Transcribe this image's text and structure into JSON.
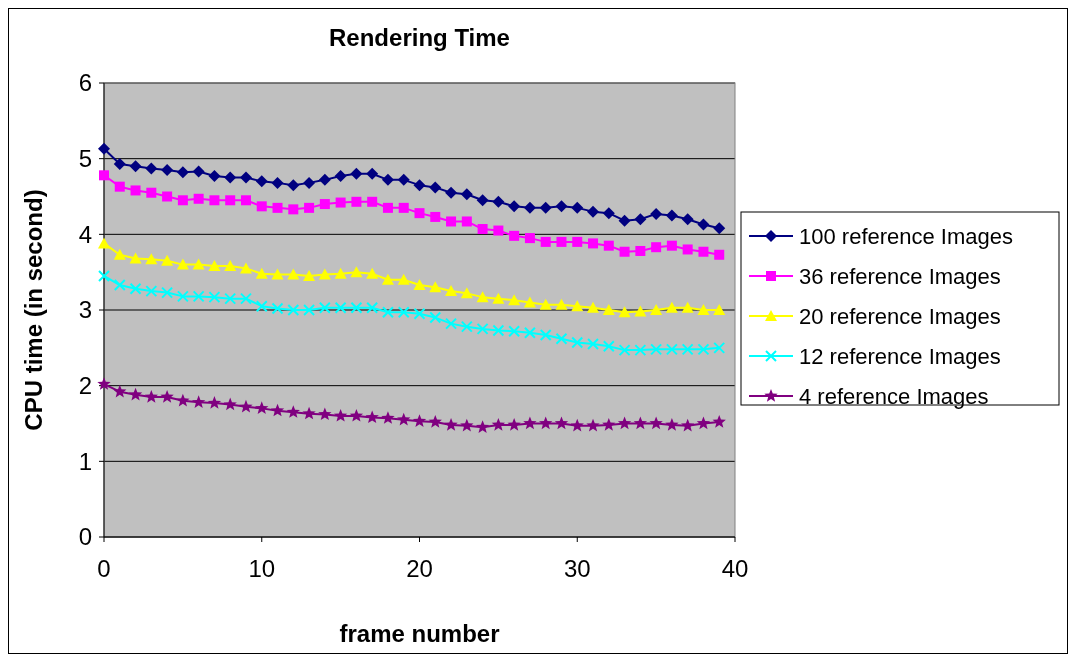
{
  "chart_data": {
    "type": "line",
    "title": "Rendering Time",
    "xlabel": "frame number",
    "ylabel": "CPU time (in second)",
    "x": [
      0,
      1,
      2,
      3,
      4,
      5,
      6,
      7,
      8,
      9,
      10,
      11,
      12,
      13,
      14,
      15,
      16,
      17,
      18,
      19,
      20,
      21,
      22,
      23,
      24,
      25,
      26,
      27,
      28,
      29,
      30,
      31,
      32,
      33,
      34,
      35,
      36,
      37,
      38,
      39
    ],
    "xlim": [
      0,
      40
    ],
    "xticks": [
      0,
      10,
      20,
      30,
      40
    ],
    "ylim": [
      0,
      6
    ],
    "yticks": [
      0,
      1,
      2,
      3,
      4,
      5,
      6
    ],
    "grid": "y",
    "legend": "right",
    "series": [
      {
        "name": "100 reference Images",
        "color": "#000080",
        "marker": "diamond",
        "values": [
          5.13,
          4.93,
          4.9,
          4.87,
          4.85,
          4.82,
          4.83,
          4.77,
          4.75,
          4.75,
          4.7,
          4.68,
          4.65,
          4.68,
          4.72,
          4.77,
          4.8,
          4.8,
          4.72,
          4.72,
          4.65,
          4.62,
          4.55,
          4.53,
          4.45,
          4.43,
          4.37,
          4.35,
          4.35,
          4.37,
          4.35,
          4.3,
          4.28,
          4.18,
          4.2,
          4.27,
          4.25,
          4.2,
          4.13,
          4.08
        ]
      },
      {
        "name": "36 reference Images",
        "color": "#ff00ff",
        "marker": "square",
        "values": [
          4.78,
          4.63,
          4.58,
          4.55,
          4.5,
          4.45,
          4.47,
          4.45,
          4.45,
          4.45,
          4.37,
          4.35,
          4.33,
          4.35,
          4.4,
          4.42,
          4.43,
          4.43,
          4.35,
          4.35,
          4.28,
          4.23,
          4.17,
          4.17,
          4.07,
          4.05,
          3.98,
          3.95,
          3.9,
          3.9,
          3.9,
          3.88,
          3.85,
          3.77,
          3.78,
          3.83,
          3.85,
          3.8,
          3.77,
          3.73
        ]
      },
      {
        "name": "20 reference Images",
        "color": "#ffff00",
        "marker": "triangle",
        "values": [
          3.88,
          3.73,
          3.68,
          3.67,
          3.65,
          3.6,
          3.6,
          3.58,
          3.58,
          3.55,
          3.48,
          3.47,
          3.47,
          3.45,
          3.47,
          3.48,
          3.5,
          3.48,
          3.4,
          3.4,
          3.33,
          3.3,
          3.25,
          3.22,
          3.17,
          3.15,
          3.13,
          3.1,
          3.07,
          3.07,
          3.05,
          3.03,
          3.0,
          2.97,
          2.98,
          3.0,
          3.03,
          3.03,
          3.0,
          3.0
        ]
      },
      {
        "name": "12 reference Images",
        "color": "#00ffff",
        "marker": "cross",
        "values": [
          3.45,
          3.33,
          3.28,
          3.25,
          3.23,
          3.18,
          3.18,
          3.17,
          3.15,
          3.15,
          3.05,
          3.02,
          3.0,
          3.0,
          3.03,
          3.03,
          3.03,
          3.03,
          2.97,
          2.97,
          2.95,
          2.9,
          2.82,
          2.78,
          2.75,
          2.73,
          2.72,
          2.7,
          2.67,
          2.62,
          2.57,
          2.55,
          2.52,
          2.47,
          2.47,
          2.48,
          2.48,
          2.48,
          2.48,
          2.5
        ]
      },
      {
        "name": "4 reference Images",
        "color": "#800080",
        "marker": "star",
        "values": [
          2.02,
          1.92,
          1.88,
          1.85,
          1.85,
          1.8,
          1.78,
          1.77,
          1.75,
          1.72,
          1.7,
          1.67,
          1.65,
          1.63,
          1.62,
          1.6,
          1.6,
          1.58,
          1.57,
          1.55,
          1.53,
          1.52,
          1.48,
          1.47,
          1.45,
          1.48,
          1.48,
          1.5,
          1.5,
          1.5,
          1.47,
          1.47,
          1.48,
          1.5,
          1.5,
          1.5,
          1.48,
          1.47,
          1.5,
          1.52
        ]
      }
    ]
  }
}
